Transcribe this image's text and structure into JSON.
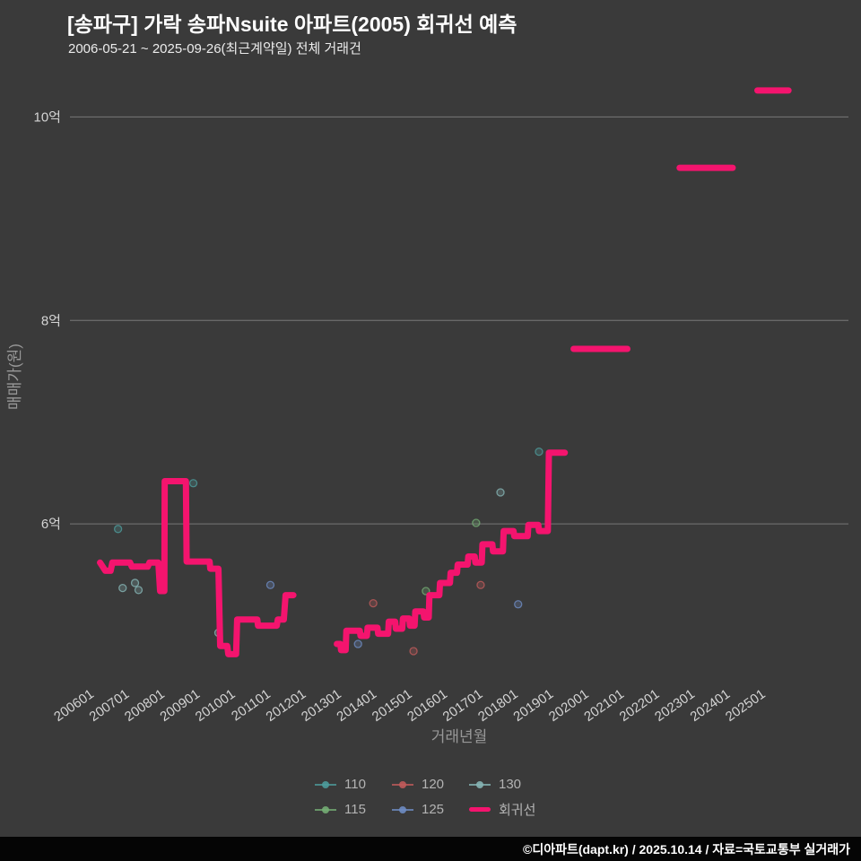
{
  "header": {
    "title": "[송파구] 가락 송파Nsuite 아파트(2005) 회귀선 예측",
    "subtitle": "2006-05-21 ~ 2025-09-26(최근계약일) 전체 거래건"
  },
  "footer": {
    "credit": "©디아파트(dapt.kr) / 2025.10.14 / 자료=국토교통부 실거래가"
  },
  "chart_data": {
    "type": "scatter",
    "title": "[송파구] 가락 송파Nsuite 아파트(2005) 회귀선 예측",
    "subtitle": "2006-05-21 ~ 2025-09-26(최근계약일) 전체 거래건",
    "xlabel": "거래년월",
    "ylabel": "매매가(원)",
    "unit": "억",
    "grid": true,
    "x_ticks": [
      "200601",
      "200701",
      "200801",
      "200901",
      "201001",
      "201101",
      "201201",
      "201301",
      "201401",
      "201501",
      "201601",
      "201701",
      "201801",
      "201901",
      "202001",
      "202101",
      "202201",
      "202301",
      "202401",
      "202501"
    ],
    "y_ticks": [
      {
        "label": "6억",
        "value": 6
      },
      {
        "label": "8억",
        "value": 8
      },
      {
        "label": "10억",
        "value": 10
      }
    ],
    "x_range": [
      2005.35,
      2027.3
    ],
    "y_range": [
      4.45,
      10.4
    ],
    "colors": {
      "background": "#3a3a3a",
      "gridline": "#787878",
      "tick_text": "#d4d4d4",
      "axis_title": "#989898",
      "legend_text": "#b3b3b3",
      "regression": "#f4146e"
    },
    "scatter_series": [
      {
        "name": "110",
        "color": "#4e9b9b",
        "points": [
          [
            2006.66,
            5.95
          ],
          [
            2008.79,
            6.4
          ],
          [
            2018.57,
            6.71
          ]
        ]
      },
      {
        "name": "115",
        "color": "#74ad74",
        "points": [
          [
            2015.37,
            5.34
          ],
          [
            2016.79,
            6.01
          ]
        ]
      },
      {
        "name": "120",
        "color": "#c05b5b",
        "points": [
          [
            2013.88,
            5.22
          ],
          [
            2015.02,
            4.75
          ],
          [
            2016.92,
            5.4
          ]
        ]
      },
      {
        "name": "125",
        "color": "#6e8cc3",
        "points": [
          [
            2010.97,
            5.4
          ],
          [
            2013.45,
            4.82
          ],
          [
            2017.98,
            5.21
          ]
        ]
      },
      {
        "name": "130",
        "color": "#86b5b5",
        "points": [
          [
            2006.79,
            5.37
          ],
          [
            2007.14,
            5.42
          ],
          [
            2007.24,
            5.35
          ],
          [
            2009.5,
            4.93
          ],
          [
            2017.48,
            6.31
          ]
        ]
      }
    ],
    "regression": {
      "name": "회귀선",
      "color": "#f4146e",
      "segments": [
        [
          [
            2006.15,
            5.62
          ],
          [
            2006.3,
            5.54
          ],
          [
            2006.45,
            5.54
          ],
          [
            2006.5,
            5.62
          ],
          [
            2007.0,
            5.62
          ],
          [
            2007.05,
            5.58
          ],
          [
            2007.5,
            5.58
          ],
          [
            2007.55,
            5.62
          ],
          [
            2007.8,
            5.62
          ],
          [
            2007.85,
            5.34
          ],
          [
            2007.97,
            5.34
          ],
          [
            2007.98,
            6.42
          ],
          [
            2008.58,
            6.42
          ],
          [
            2008.6,
            5.63
          ],
          [
            2009.25,
            5.63
          ],
          [
            2009.27,
            5.56
          ],
          [
            2009.5,
            5.56
          ],
          [
            2009.55,
            4.8
          ],
          [
            2009.75,
            4.8
          ],
          [
            2009.78,
            4.72
          ],
          [
            2010.0,
            4.72
          ],
          [
            2010.03,
            5.06
          ],
          [
            2010.6,
            5.06
          ],
          [
            2010.62,
            5.0
          ],
          [
            2011.15,
            5.0
          ],
          [
            2011.18,
            5.06
          ],
          [
            2011.35,
            5.06
          ],
          [
            2011.4,
            5.3
          ],
          [
            2011.62,
            5.3
          ]
        ],
        [
          [
            2012.85,
            4.82
          ],
          [
            2012.95,
            4.82
          ],
          [
            2012.97,
            4.76
          ],
          [
            2013.1,
            4.76
          ],
          [
            2013.12,
            4.95
          ],
          [
            2013.5,
            4.95
          ],
          [
            2013.52,
            4.9
          ],
          [
            2013.7,
            4.9
          ],
          [
            2013.72,
            4.98
          ],
          [
            2014.0,
            4.98
          ],
          [
            2014.02,
            4.92
          ],
          [
            2014.3,
            4.92
          ],
          [
            2014.32,
            5.04
          ],
          [
            2014.5,
            5.04
          ],
          [
            2014.52,
            4.97
          ],
          [
            2014.7,
            4.97
          ],
          [
            2014.72,
            5.07
          ],
          [
            2014.9,
            5.07
          ],
          [
            2014.92,
            5.0
          ],
          [
            2015.05,
            5.0
          ],
          [
            2015.07,
            5.14
          ],
          [
            2015.3,
            5.14
          ],
          [
            2015.32,
            5.08
          ],
          [
            2015.45,
            5.08
          ],
          [
            2015.47,
            5.3
          ],
          [
            2015.75,
            5.3
          ],
          [
            2015.77,
            5.42
          ],
          [
            2016.05,
            5.42
          ],
          [
            2016.07,
            5.52
          ],
          [
            2016.25,
            5.52
          ],
          [
            2016.27,
            5.6
          ],
          [
            2016.55,
            5.6
          ],
          [
            2016.57,
            5.68
          ],
          [
            2016.75,
            5.68
          ],
          [
            2016.77,
            5.62
          ],
          [
            2016.95,
            5.62
          ],
          [
            2016.97,
            5.8
          ],
          [
            2017.25,
            5.8
          ],
          [
            2017.27,
            5.73
          ],
          [
            2017.55,
            5.73
          ],
          [
            2017.57,
            5.93
          ],
          [
            2017.85,
            5.93
          ],
          [
            2017.87,
            5.88
          ],
          [
            2018.25,
            5.88
          ],
          [
            2018.27,
            5.99
          ],
          [
            2018.55,
            5.99
          ],
          [
            2018.57,
            5.93
          ],
          [
            2018.82,
            5.93
          ],
          [
            2018.85,
            6.7
          ],
          [
            2019.3,
            6.7
          ]
        ],
        [
          [
            2019.55,
            7.72
          ],
          [
            2021.07,
            7.72
          ]
        ],
        [
          [
            2022.55,
            9.5
          ],
          [
            2024.05,
            9.5
          ]
        ],
        [
          [
            2024.75,
            10.26
          ],
          [
            2025.63,
            10.26
          ]
        ]
      ]
    },
    "legend": {
      "items": [
        {
          "label": "110",
          "color": "#4e9b9b",
          "marker": "line-dot"
        },
        {
          "label": "120",
          "color": "#c05b5b",
          "marker": "line-dot"
        },
        {
          "label": "130",
          "color": "#86b5b5",
          "marker": "line-dot"
        },
        {
          "label": "115",
          "color": "#74ad74",
          "marker": "line-dot"
        },
        {
          "label": "125",
          "color": "#6e8cc3",
          "marker": "line-dot"
        },
        {
          "label": "회귀선",
          "color": "#f4146e",
          "marker": "thick-line"
        }
      ]
    }
  }
}
